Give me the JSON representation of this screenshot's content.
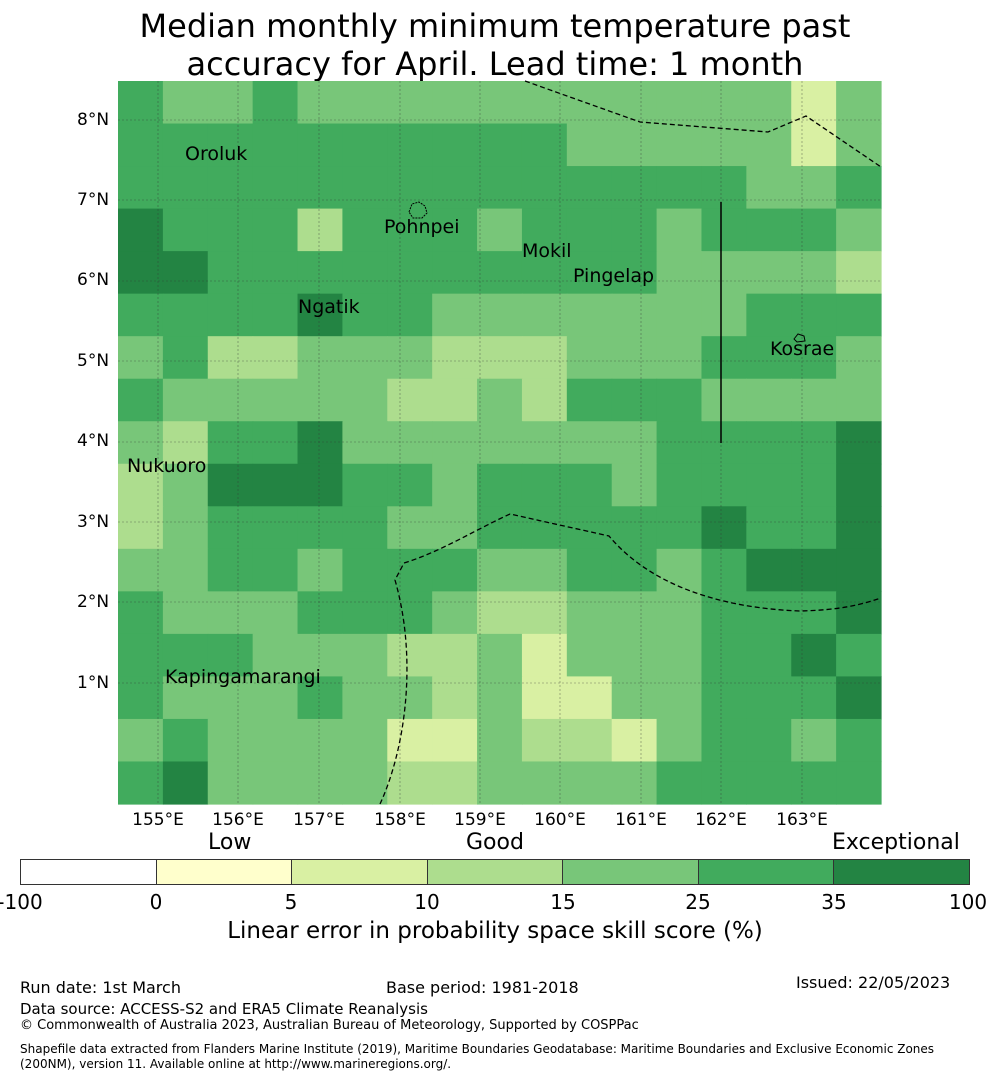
{
  "title": {
    "line1": "Median monthly minimum temperature past",
    "line2": "accuracy for April. Lead time: 1 month"
  },
  "map": {
    "lat_labels": [
      "8°N",
      "7°N",
      "6°N",
      "5°N",
      "4°N",
      "3°N",
      "2°N",
      "1°N"
    ],
    "lon_labels": [
      "155°E",
      "156°E",
      "157°E",
      "158°E",
      "159°E",
      "160°E",
      "161°E",
      "162°E",
      "163°E"
    ],
    "places": {
      "oroluk": "Oroluk",
      "pohnpei": "Pohnpei",
      "mokil": "Mokil",
      "pingelap": "Pingelap",
      "ngatik": "Ngatik",
      "kosrae": "Kosrae",
      "nukuoro": "Nukuoro",
      "kapingamarangi": "Kapingamarangi"
    },
    "grid_note": "skill category index per cell (0=<0,1=0-5,2=5-10,3=10-15,4=15-25,5=25-35,6=35-100), rows north to south",
    "cells": [
      [
        5,
        4,
        4,
        5,
        4,
        4,
        4,
        4,
        4,
        4,
        4,
        4,
        4,
        4,
        4,
        2,
        4
      ],
      [
        5,
        5,
        5,
        5,
        5,
        5,
        5,
        5,
        5,
        5,
        4,
        4,
        4,
        4,
        4,
        2,
        4
      ],
      [
        5,
        5,
        5,
        5,
        5,
        5,
        5,
        5,
        5,
        5,
        5,
        5,
        5,
        5,
        4,
        4,
        5
      ],
      [
        6,
        5,
        5,
        5,
        3,
        5,
        5,
        5,
        4,
        5,
        5,
        5,
        4,
        5,
        5,
        5,
        4
      ],
      [
        6,
        6,
        5,
        5,
        5,
        5,
        5,
        5,
        5,
        5,
        5,
        5,
        4,
        4,
        4,
        4,
        3
      ],
      [
        5,
        5,
        5,
        5,
        6,
        5,
        5,
        4,
        4,
        4,
        4,
        4,
        4,
        4,
        5,
        5,
        5
      ],
      [
        4,
        5,
        3,
        3,
        4,
        4,
        4,
        3,
        3,
        3,
        4,
        4,
        4,
        5,
        5,
        5,
        4
      ],
      [
        5,
        4,
        4,
        4,
        4,
        4,
        3,
        3,
        4,
        3,
        5,
        5,
        5,
        4,
        4,
        4,
        4
      ],
      [
        4,
        3,
        5,
        5,
        6,
        4,
        4,
        4,
        4,
        4,
        4,
        4,
        5,
        5,
        5,
        5,
        6
      ],
      [
        3,
        4,
        6,
        6,
        6,
        5,
        5,
        4,
        5,
        5,
        5,
        4,
        5,
        5,
        5,
        5,
        6
      ],
      [
        3,
        4,
        5,
        5,
        5,
        5,
        4,
        4,
        5,
        5,
        5,
        5,
        5,
        6,
        5,
        5,
        6
      ],
      [
        4,
        4,
        5,
        5,
        4,
        5,
        5,
        5,
        4,
        4,
        5,
        5,
        4,
        5,
        6,
        6,
        6
      ],
      [
        5,
        4,
        4,
        4,
        5,
        5,
        5,
        4,
        3,
        3,
        4,
        4,
        4,
        5,
        5,
        5,
        6
      ],
      [
        5,
        5,
        5,
        4,
        4,
        4,
        3,
        3,
        4,
        2,
        4,
        4,
        4,
        5,
        5,
        6,
        5
      ],
      [
        5,
        4,
        4,
        4,
        5,
        4,
        4,
        3,
        4,
        2,
        2,
        4,
        4,
        5,
        5,
        5,
        6
      ],
      [
        4,
        5,
        4,
        4,
        4,
        4,
        2,
        2,
        4,
        3,
        3,
        2,
        4,
        5,
        5,
        4,
        5
      ],
      [
        5,
        6,
        4,
        4,
        4,
        4,
        3,
        3,
        4,
        4,
        4,
        4,
        5,
        5,
        5,
        5,
        5
      ]
    ]
  },
  "colorbar": {
    "categories": {
      "low": "Low",
      "good": "Good",
      "exceptional": "Exceptional"
    },
    "ticks": [
      "-100",
      "0",
      "5",
      "10",
      "15",
      "25",
      "35",
      "100"
    ],
    "colors": [
      "#ffffff",
      "#ffffcc",
      "#d9f0a3",
      "#addd8e",
      "#78c679",
      "#41ab5d",
      "#238443"
    ],
    "label": "Linear error in probability space skill score (%)"
  },
  "footer": {
    "run_date": "Run date: 1st March",
    "base_period": "Base period: 1981-2018",
    "issued": "Issued: 22/05/2023",
    "data_source": "Data source: ACCESS-S2 and ERA5 Climate Reanalysis",
    "copyright": "© Commonwealth of Australia 2023, Australian Bureau of Meteorology, Supported by COSPPac",
    "shapefile1": "Shapefile data extracted from Flanders Marine Institute (2019), Maritime Boundaries Geodatabase: Maritime Boundaries and Exclusive Economic Zones",
    "shapefile2": "(200NM), version 11. Available online at http://www.marineregions.org/."
  }
}
